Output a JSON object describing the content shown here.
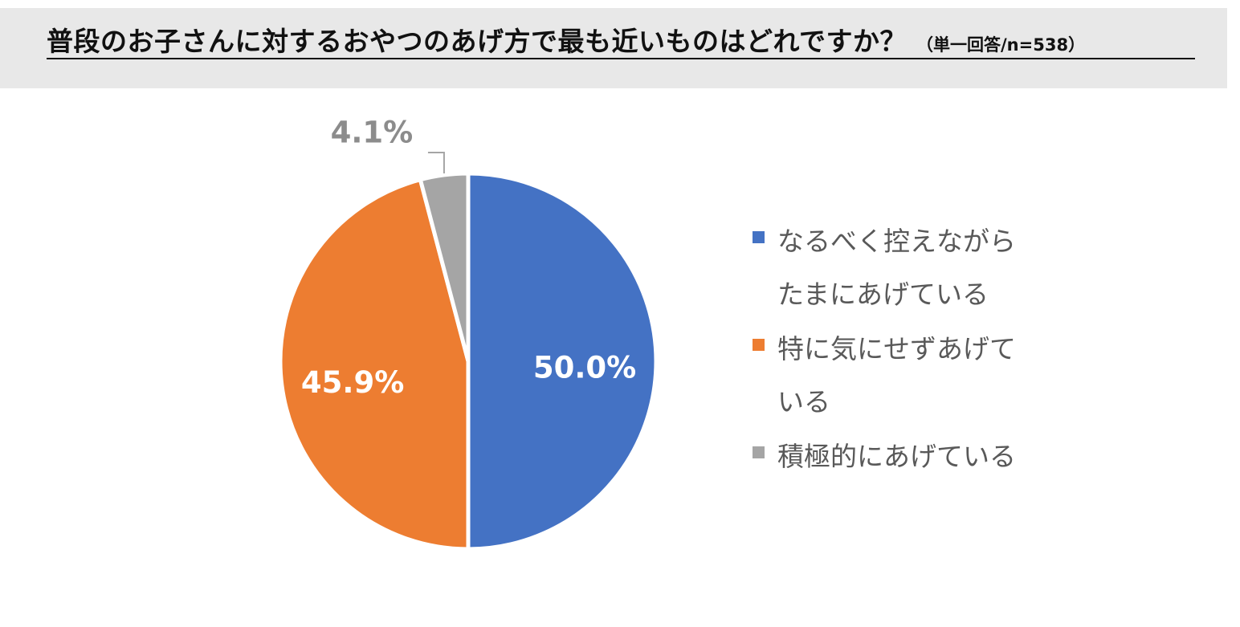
{
  "title": {
    "main": "普段のお子さんに対するおやつのあげ方で最も近いものはどれですか？",
    "note": "（単一回答/n=538）"
  },
  "chart_data": {
    "type": "pie",
    "title": "普段のお子さんに対するおやつのあげ方で最も近いものはどれですか？（単一回答/n=538）",
    "categories": [
      "なるべく控えながらたまにあげている",
      "特に気にせずあげている",
      "積極的にあげている"
    ],
    "values": [
      50.0,
      45.9,
      4.1
    ],
    "value_labels": [
      "50.0%",
      "45.9%",
      "4.1%"
    ],
    "colors": [
      "#4472c4",
      "#ed7d31",
      "#a5a5a5"
    ],
    "start_angle": "12 o'clock, clockwise",
    "legend": "right"
  }
}
